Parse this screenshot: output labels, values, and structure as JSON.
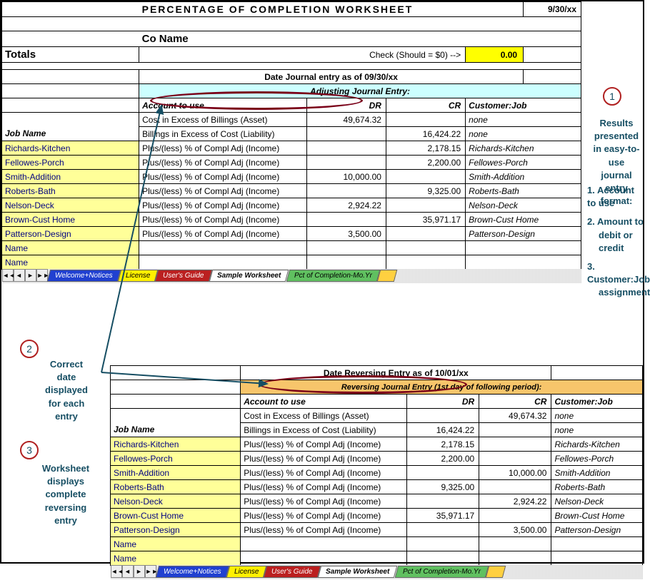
{
  "sheet1": {
    "title": "PERCENTAGE  OF  COMPLETION  WORKSHEET",
    "date": "9/30/xx",
    "company": "Co Name",
    "totals_label": "Totals",
    "check_label": "Check (Should = $0) -->",
    "check_value": "0.00",
    "date_entry_label": "Date Journal entry as of   09/30/xx",
    "section_header": "Adjusting Journal Entry:",
    "col_account": "Account to use",
    "col_dr": "DR",
    "col_cr": "CR",
    "col_cust": "Customer:Job",
    "job_name_header": "Job Name",
    "rows": [
      {
        "job": "",
        "acct": "Cost in Excess of Billings (Asset)",
        "dr": "49,674.32",
        "cr": "",
        "cust": "none"
      },
      {
        "job": "",
        "acct": "Billings in Excess of Cost (Liability)",
        "dr": "",
        "cr": "16,424.22",
        "cust": "none"
      },
      {
        "job": "Richards-Kitchen",
        "acct": "Plus/(less) % of Compl Adj (Income)",
        "dr": "",
        "cr": "2,178.15",
        "cust": "Richards-Kitchen"
      },
      {
        "job": "Fellowes-Porch",
        "acct": "Plus/(less) % of Compl Adj (Income)",
        "dr": "",
        "cr": "2,200.00",
        "cust": "Fellowes-Porch"
      },
      {
        "job": "Smith-Addition",
        "acct": "Plus/(less) % of Compl Adj (Income)",
        "dr": "10,000.00",
        "cr": "",
        "cust": "Smith-Addition"
      },
      {
        "job": "Roberts-Bath",
        "acct": "Plus/(less) % of Compl Adj (Income)",
        "dr": "",
        "cr": "9,325.00",
        "cust": "Roberts-Bath"
      },
      {
        "job": "Nelson-Deck",
        "acct": "Plus/(less) % of Compl Adj (Income)",
        "dr": "2,924.22",
        "cr": "",
        "cust": "Nelson-Deck"
      },
      {
        "job": "Brown-Cust Home",
        "acct": "Plus/(less) % of Compl Adj (Income)",
        "dr": "",
        "cr": "35,971.17",
        "cust": "Brown-Cust Home"
      },
      {
        "job": "Patterson-Design",
        "acct": "Plus/(less) % of Compl Adj (Income)",
        "dr": "3,500.00",
        "cr": "",
        "cust": "Patterson-Design"
      },
      {
        "job": "Name",
        "acct": "",
        "dr": "",
        "cr": "",
        "cust": ""
      },
      {
        "job": "Name",
        "acct": "",
        "dr": "",
        "cr": "",
        "cust": ""
      }
    ]
  },
  "sheet2": {
    "date_entry_label": "Date Reversing Entry as of  10/01/xx",
    "section_header": "Reversing Journal Entry (1st day of following period):",
    "col_account": "Account to use",
    "col_dr": "DR",
    "col_cr": "CR",
    "col_cust": "Customer:Job",
    "job_name_header": "Job Name",
    "rows": [
      {
        "job": "",
        "acct": "Cost in Excess of Billings (Asset)",
        "dr": "",
        "cr": "49,674.32",
        "cust": "none"
      },
      {
        "job": "",
        "acct": "Billings in Excess of Cost (Liability)",
        "dr": "16,424.22",
        "cr": "",
        "cust": "none"
      },
      {
        "job": "Richards-Kitchen",
        "acct": "Plus/(less) % of Compl Adj (Income)",
        "dr": "2,178.15",
        "cr": "",
        "cust": "Richards-Kitchen"
      },
      {
        "job": "Fellowes-Porch",
        "acct": "Plus/(less) % of Compl Adj (Income)",
        "dr": "2,200.00",
        "cr": "",
        "cust": "Fellowes-Porch"
      },
      {
        "job": "Smith-Addition",
        "acct": "Plus/(less) % of Compl Adj (Income)",
        "dr": "",
        "cr": "10,000.00",
        "cust": "Smith-Addition"
      },
      {
        "job": "Roberts-Bath",
        "acct": "Plus/(less) % of Compl Adj (Income)",
        "dr": "9,325.00",
        "cr": "",
        "cust": "Roberts-Bath"
      },
      {
        "job": "Nelson-Deck",
        "acct": "Plus/(less) % of Compl Adj (Income)",
        "dr": "",
        "cr": "2,924.22",
        "cust": "Nelson-Deck"
      },
      {
        "job": "Brown-Cust Home",
        "acct": "Plus/(less) % of Compl Adj (Income)",
        "dr": "35,971.17",
        "cr": "",
        "cust": "Brown-Cust Home"
      },
      {
        "job": "Patterson-Design",
        "acct": "Plus/(less) % of Compl Adj (Income)",
        "dr": "",
        "cr": "3,500.00",
        "cust": "Patterson-Design"
      },
      {
        "job": "Name",
        "acct": "",
        "dr": "",
        "cr": "",
        "cust": ""
      },
      {
        "job": "Name",
        "acct": "",
        "dr": "",
        "cr": "",
        "cust": ""
      }
    ]
  },
  "tabs": {
    "t1": "Welcome+Notices",
    "t2": "License",
    "t3": "User's Guide",
    "t4": "Sample Worksheet",
    "t5": "Pct of Completion-Mo.Yr"
  },
  "annotations": {
    "n1": "1",
    "n2": "2",
    "n3": "3",
    "a1_line1": "Results presented",
    "a1_line2": "in easy-to-use",
    "a1_line3": "journal entry",
    "a1_line4": "format:",
    "a1_b1": "1.  Account to use",
    "a1_b2a": "2.  Amount to",
    "a1_b2b": "debit or credit",
    "a1_b3a": "3.  Customer:Job",
    "a1_b3b": "assignment",
    "a2_l1": "Correct",
    "a2_l2": "date",
    "a2_l3": "displayed",
    "a2_l4": "for each",
    "a2_l5": "entry",
    "a3_l1": "Worksheet",
    "a3_l2": "displays",
    "a3_l3": "complete",
    "a3_l4": "reversing",
    "a3_l5": "entry"
  }
}
